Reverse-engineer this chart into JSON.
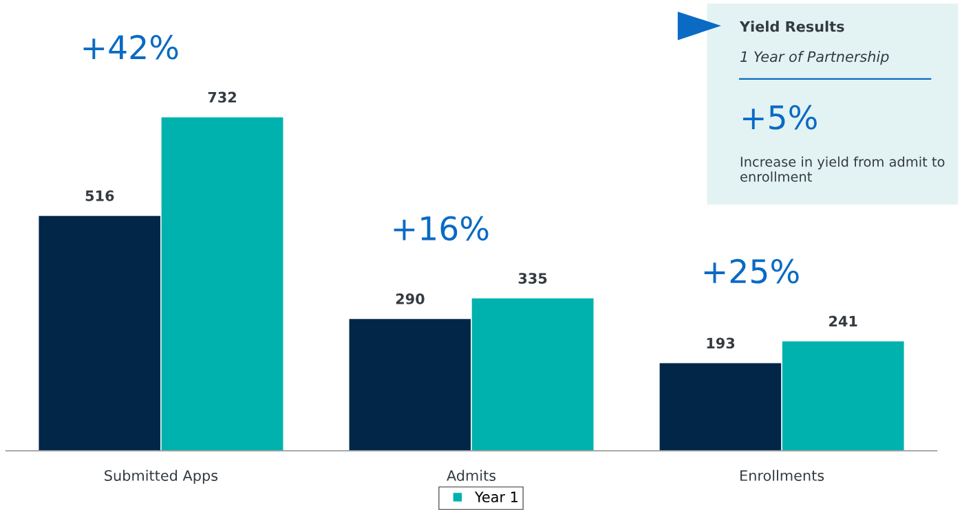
{
  "chart_data": [
    {
      "type": "bar",
      "categories": [
        "Submitted Apps",
        "Admits",
        "Enrollments"
      ],
      "series": [
        {
          "color": "#022648",
          "values": [
            516,
            290,
            193
          ]
        },
        {
          "name": "Year 1",
          "color": "#00b2ae",
          "values": [
            732,
            335,
            241
          ]
        }
      ],
      "data_labels": true,
      "legend": "bottom",
      "grid": false,
      "annotations": [
        "+42%",
        "+16%",
        "+25%"
      ]
    },
    {
      "type": "other",
      "title": "Yield Results",
      "subtitle": "1 Year of Partnership",
      "annotations": [
        "+5%",
        "Increase in yield from admit to enrollment"
      ]
    }
  ]
}
